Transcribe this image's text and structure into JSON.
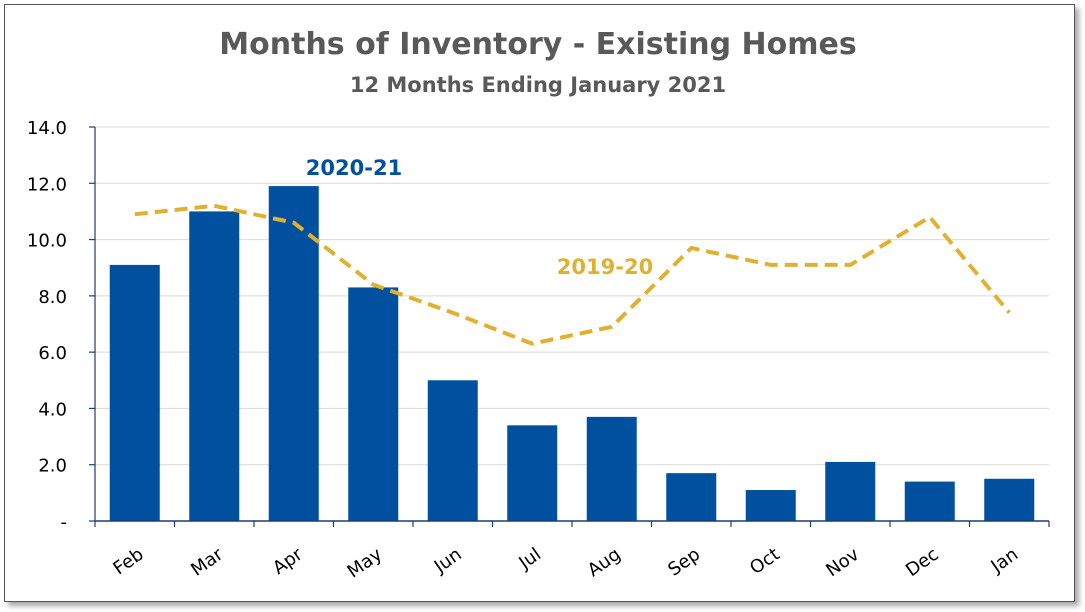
{
  "chart_data": {
    "type": "bar",
    "title": "Months of Inventory - Existing Homes",
    "subtitle": "12 Months Ending January 2021",
    "categories": [
      "Feb",
      "Mar",
      "Apr",
      "May",
      "Jun",
      "Jul",
      "Aug",
      "Sep",
      "Oct",
      "Nov",
      "Dec",
      "Jan"
    ],
    "series": [
      {
        "name": "2020-21",
        "type": "bar",
        "color": "#0050A0",
        "values": [
          9.1,
          11.0,
          11.9,
          8.3,
          5.0,
          3.4,
          3.7,
          1.7,
          1.1,
          2.1,
          1.4,
          1.5
        ]
      },
      {
        "name": "2019-20",
        "type": "line",
        "style": "dashed",
        "color": "#E0B030",
        "values": [
          10.9,
          11.2,
          10.6,
          8.4,
          7.4,
          6.3,
          6.9,
          9.7,
          9.1,
          9.1,
          10.8,
          7.4
        ]
      }
    ],
    "ylim": [
      0,
      14
    ],
    "yticks": [
      0,
      2,
      4,
      6,
      8,
      10,
      12,
      14
    ],
    "ytick_labels": [
      "-",
      "2.0",
      "4.0",
      "6.0",
      "8.0",
      "10.0",
      "12.0",
      "14.0"
    ],
    "xlabel": "",
    "ylabel": "",
    "grid": true,
    "legend": "inline labels"
  }
}
